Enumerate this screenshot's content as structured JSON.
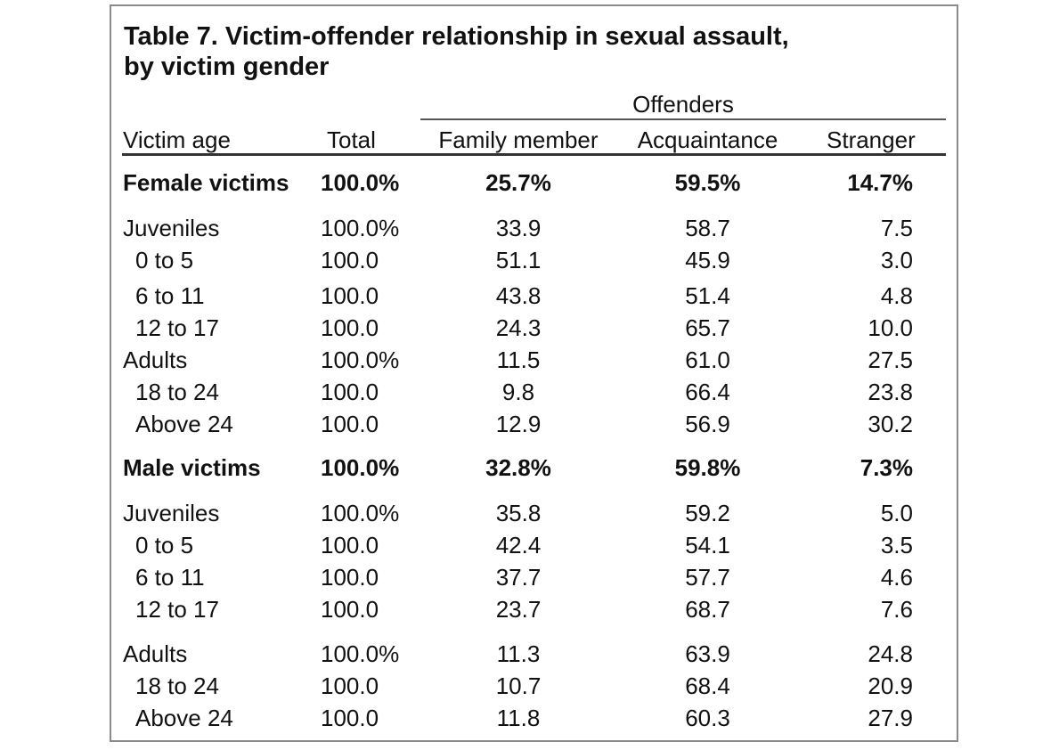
{
  "table": {
    "title_line1": "Table 7. Victim-offender relationship in sexual assault,",
    "title_line2": "by victim gender",
    "group_header": "Offenders",
    "headers": {
      "age": "Victim age",
      "total": "Total",
      "family": "Family member",
      "acquaintance": "Acquaintance",
      "stranger": "Stranger"
    },
    "rows": [
      {
        "label": "Female victims",
        "total": "100.0%",
        "family": "25.7%",
        "acquaintance": "59.5%",
        "stranger": "14.7%"
      },
      {
        "label": "Juveniles",
        "total": "100.0%",
        "family": "33.9",
        "acquaintance": "58.7",
        "stranger": "7.5"
      },
      {
        "label": "0 to 5",
        "total": "100.0",
        "family": "51.1",
        "acquaintance": "45.9",
        "stranger": "3.0"
      },
      {
        "label": "6 to 11",
        "total": "100.0",
        "family": "43.8",
        "acquaintance": "51.4",
        "stranger": "4.8"
      },
      {
        "label": "12 to 17",
        "total": "100.0",
        "family": "24.3",
        "acquaintance": "65.7",
        "stranger": "10.0"
      },
      {
        "label": "Adults",
        "total": "100.0%",
        "family": "11.5",
        "acquaintance": "61.0",
        "stranger": "27.5"
      },
      {
        "label": "18 to 24",
        "total": "100.0",
        "family": "9.8",
        "acquaintance": "66.4",
        "stranger": "23.8"
      },
      {
        "label": "Above 24",
        "total": "100.0",
        "family": "12.9",
        "acquaintance": "56.9",
        "stranger": "30.2"
      },
      {
        "label": "Male victims",
        "total": "100.0%",
        "family": "32.8%",
        "acquaintance": "59.8%",
        "stranger": "7.3%"
      },
      {
        "label": "Juveniles",
        "total": "100.0%",
        "family": "35.8",
        "acquaintance": "59.2",
        "stranger": "5.0"
      },
      {
        "label": "0 to 5",
        "total": "100.0",
        "family": "42.4",
        "acquaintance": "54.1",
        "stranger": "3.5"
      },
      {
        "label": "6 to 11",
        "total": "100.0",
        "family": "37.7",
        "acquaintance": "57.7",
        "stranger": "4.6"
      },
      {
        "label": "12 to 17",
        "total": "100.0",
        "family": "23.7",
        "acquaintance": "68.7",
        "stranger": "7.6"
      },
      {
        "label": "Adults",
        "total": "100.0%",
        "family": "11.3",
        "acquaintance": "63.9",
        "stranger": "24.8"
      },
      {
        "label": "18 to 24",
        "total": "100.0",
        "family": "10.7",
        "acquaintance": "68.4",
        "stranger": "20.9"
      },
      {
        "label": "Above 24",
        "total": "100.0",
        "family": "11.8",
        "acquaintance": "60.3",
        "stranger": "27.9"
      }
    ]
  }
}
